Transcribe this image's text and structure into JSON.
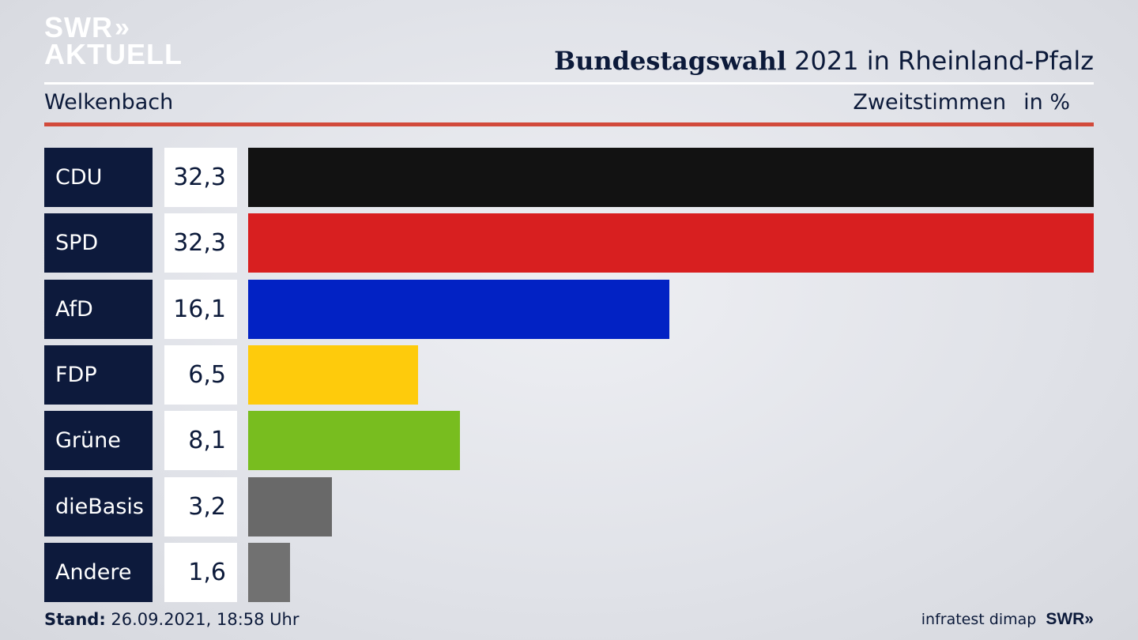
{
  "header": {
    "logo_line1": "SWR",
    "logo_chevrons": "»",
    "logo_line2": "AKTUELL",
    "headline_bold": "Bundestagswahl",
    "headline_rest": " 2021 in Rheinland-Pfalz",
    "location": "Welkenbach",
    "vote_type": "Zweitstimmen",
    "unit": "in %"
  },
  "footer": {
    "stand_label": "Stand:",
    "stand_value": " 26.09.2021, 18:58 Uhr",
    "source": "infratest dimap",
    "brand": "SWR»"
  },
  "colors": {
    "accent_red": "#d24a3b",
    "label_bg": "#0d1a3c"
  },
  "chart_data": {
    "type": "bar",
    "orientation": "horizontal",
    "categories": [
      "CDU",
      "SPD",
      "AfD",
      "FDP",
      "Grüne",
      "dieBasis",
      "Andere"
    ],
    "values": [
      32.3,
      32.3,
      16.1,
      6.5,
      8.1,
      3.2,
      1.6
    ],
    "value_labels": [
      "32,3",
      "32,3",
      "16,1",
      "6,5",
      "8,1",
      "3,2",
      "1,6"
    ],
    "colors": [
      "#121212",
      "#d81f20",
      "#0222c4",
      "#fecb0c",
      "#78bd1f",
      "#696969",
      "#717171"
    ],
    "xlim": [
      0,
      32.3
    ]
  }
}
